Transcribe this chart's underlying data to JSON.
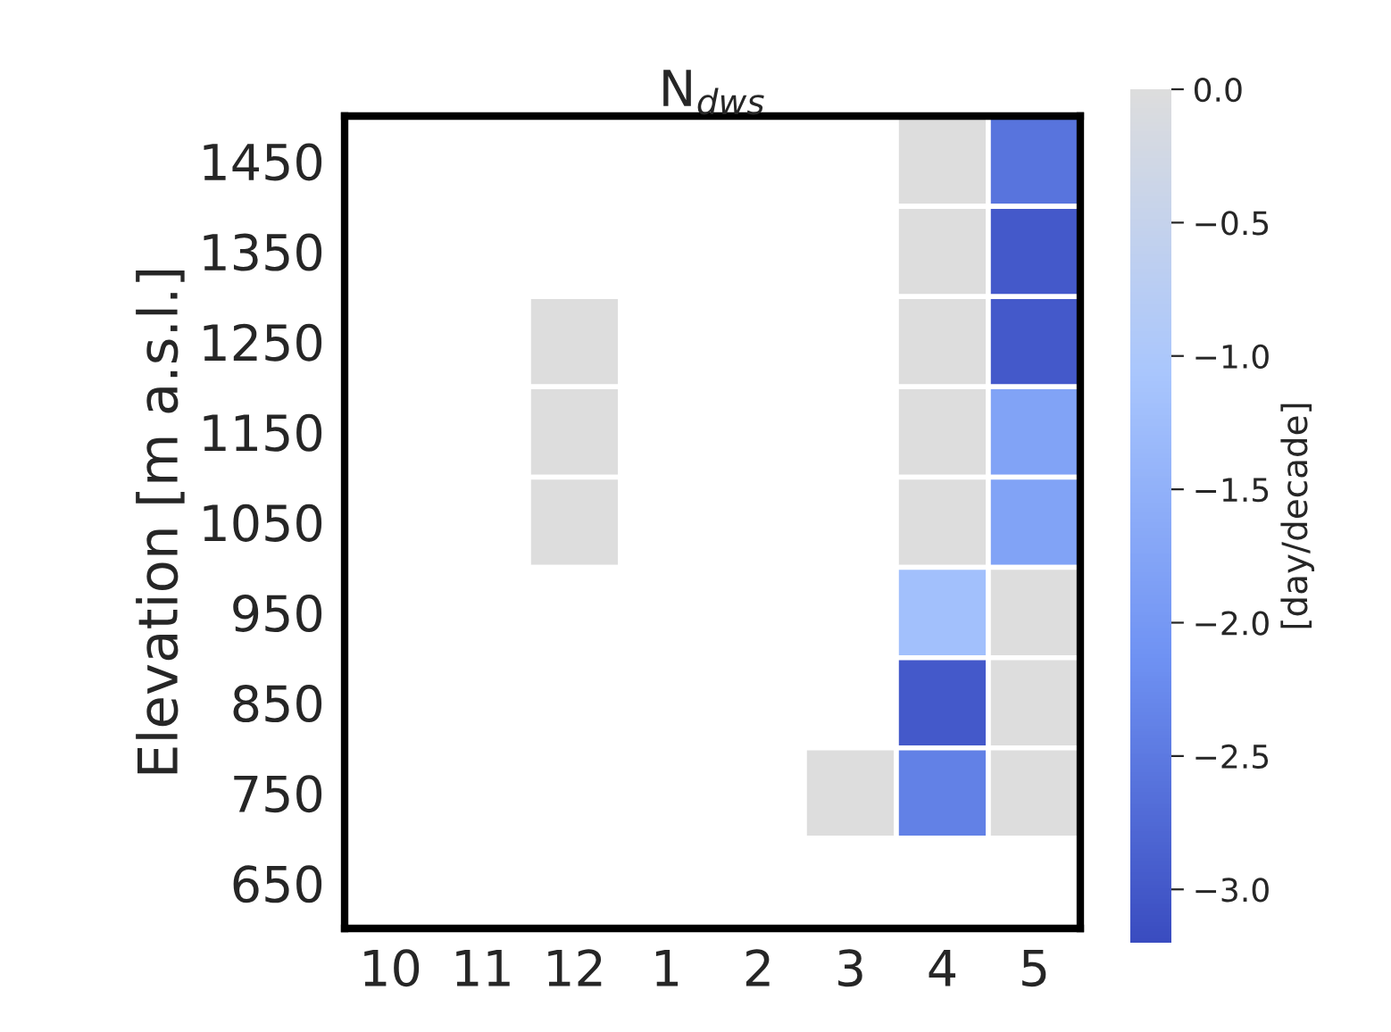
{
  "chart_data": {
    "type": "heatmap",
    "title": "N$_{dws}$",
    "ylabel": "Elevation [m a.s.l.]",
    "clabel": "[day/decade]",
    "categories": [
      "10",
      "11",
      "12",
      "1",
      "2",
      "3",
      "4",
      "5"
    ],
    "y_categories": [
      "1450",
      "1350",
      "1250",
      "1150",
      "1050",
      "950",
      "850",
      "750",
      "650"
    ],
    "cells": [
      [
        null,
        null,
        null,
        null,
        null,
        null,
        0.0,
        -2.6
      ],
      [
        null,
        null,
        null,
        null,
        null,
        null,
        0.0,
        -3.0
      ],
      [
        null,
        null,
        0.0,
        null,
        null,
        null,
        0.0,
        -3.0
      ],
      [
        null,
        null,
        0.0,
        null,
        null,
        null,
        0.0,
        -1.8
      ],
      [
        null,
        null,
        0.0,
        null,
        null,
        null,
        0.0,
        -1.8
      ],
      [
        null,
        null,
        null,
        null,
        null,
        null,
        -1.2,
        0.0
      ],
      [
        null,
        null,
        null,
        null,
        null,
        null,
        -3.0,
        0.0
      ],
      [
        null,
        null,
        null,
        null,
        null,
        0.0,
        -2.4,
        0.0
      ],
      [
        null,
        null,
        null,
        null,
        null,
        null,
        null,
        null
      ]
    ],
    "clim": [
      -3.2,
      0.0
    ],
    "cticks": [
      {
        "value": 0.0,
        "label": "0.0"
      },
      {
        "value": -0.5,
        "label": "−0.5"
      },
      {
        "value": -1.0,
        "label": "−1.0"
      },
      {
        "value": -1.5,
        "label": "−1.5"
      },
      {
        "value": -2.0,
        "label": "−2.0"
      },
      {
        "value": -2.5,
        "label": "−2.5"
      },
      {
        "value": -3.0,
        "label": "−3.0"
      }
    ]
  }
}
